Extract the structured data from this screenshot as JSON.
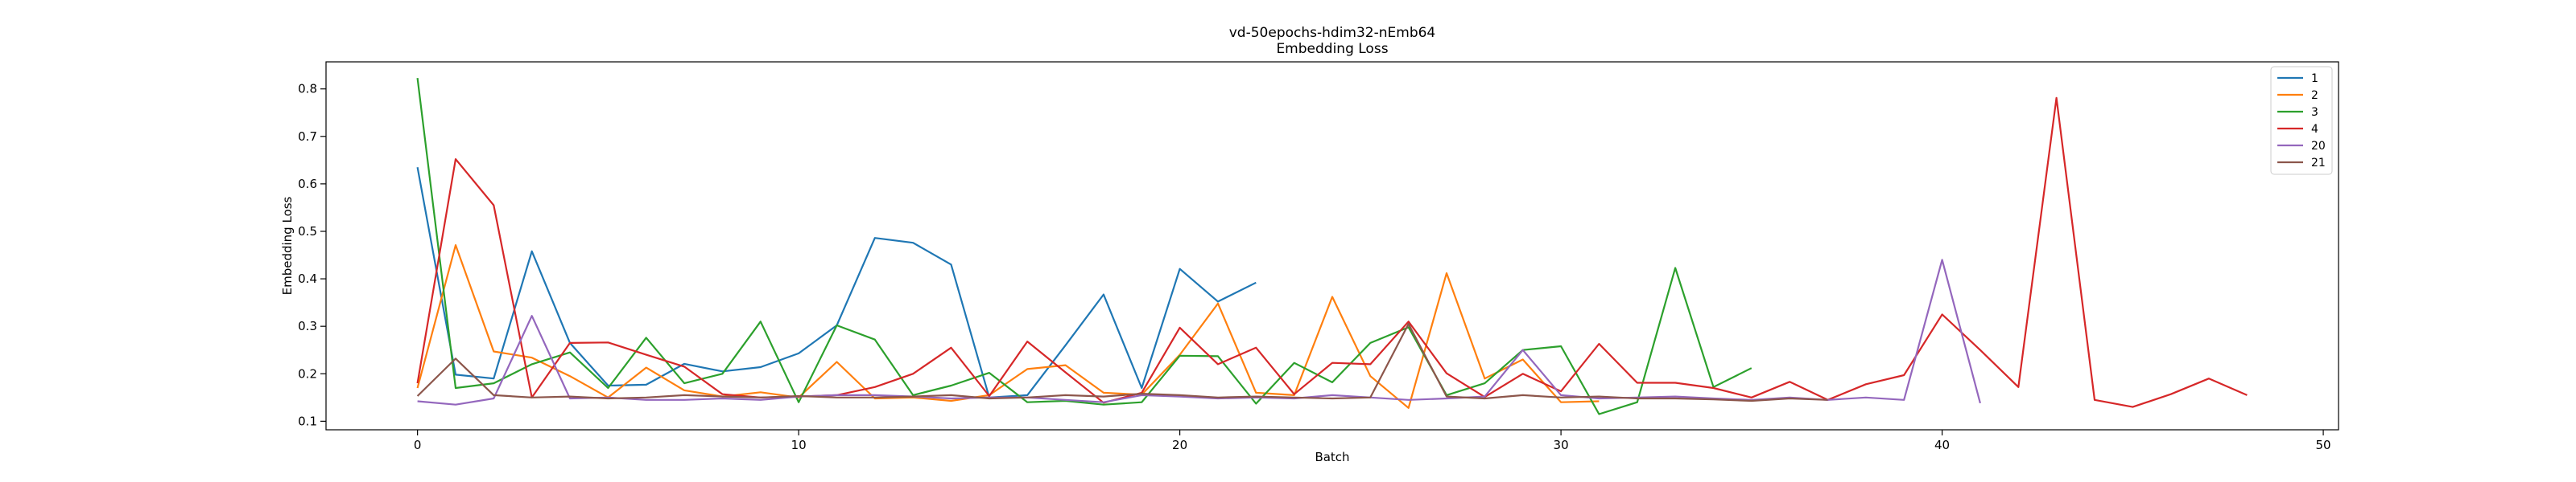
{
  "chart_data": {
    "type": "line",
    "title": "vd-50epochs-hdim32-nEmb64",
    "subtitle": "Embedding Loss",
    "xlabel": "Batch",
    "ylabel": "Embedding Loss",
    "xlim": [
      -2.4,
      50.4
    ],
    "ylim": [
      0.082,
      0.857
    ],
    "xticks": [
      0,
      10,
      20,
      30,
      40,
      50
    ],
    "yticks": [
      0.1,
      0.2,
      0.3,
      0.4,
      0.5,
      0.6,
      0.7,
      0.8
    ],
    "grid": false,
    "legend_position": "top-right",
    "series": [
      {
        "name": "1",
        "color": "#1f77b4",
        "values": [
          0.635,
          0.198,
          0.19,
          0.458,
          0.265,
          0.175,
          0.177,
          0.221,
          0.205,
          0.214,
          0.243,
          0.302,
          0.486,
          0.476,
          0.43,
          0.15,
          0.155,
          0.26,
          0.367,
          0.17,
          0.421,
          0.352,
          0.392
        ]
      },
      {
        "name": "2",
        "color": "#ff7f0e",
        "values": [
          0.17,
          0.471,
          0.247,
          0.234,
          0.195,
          0.15,
          0.213,
          0.165,
          0.152,
          0.161,
          0.15,
          0.225,
          0.148,
          0.15,
          0.143,
          0.155,
          0.21,
          0.218,
          0.16,
          0.156,
          0.24,
          0.348,
          0.16,
          0.155,
          0.362,
          0.195,
          0.128,
          0.412,
          0.19,
          0.23,
          0.14,
          0.142
        ]
      },
      {
        "name": "3",
        "color": "#2ca02c",
        "values": [
          0.823,
          0.17,
          0.18,
          0.22,
          0.245,
          0.17,
          0.276,
          0.18,
          0.2,
          0.31,
          0.14,
          0.302,
          0.272,
          0.155,
          0.175,
          0.202,
          0.14,
          0.143,
          0.135,
          0.14,
          0.238,
          0.237,
          0.137,
          0.223,
          0.182,
          0.265,
          0.298,
          0.155,
          0.18,
          0.25,
          0.258,
          0.115,
          0.14,
          0.423,
          0.172,
          0.212
        ]
      },
      {
        "name": "4",
        "color": "#d62728",
        "values": [
          0.18,
          0.652,
          0.555,
          0.15,
          0.265,
          0.266,
          0.24,
          0.215,
          0.157,
          0.15,
          0.152,
          0.155,
          0.172,
          0.2,
          0.255,
          0.153,
          0.268,
          0.203,
          0.139,
          0.16,
          0.297,
          0.22,
          0.255,
          0.157,
          0.223,
          0.22,
          0.31,
          0.201,
          0.151,
          0.2,
          0.163,
          0.263,
          0.181,
          0.181,
          0.17,
          0.15,
          0.183,
          0.145,
          0.178,
          0.197,
          0.325,
          0.25,
          0.172,
          0.781,
          0.145,
          0.13,
          0.157,
          0.19,
          0.155
        ]
      },
      {
        "name": "20",
        "color": "#9467bd",
        "values": [
          0.142,
          0.135,
          0.148,
          0.322,
          0.148,
          0.15,
          0.145,
          0.145,
          0.148,
          0.145,
          0.152,
          0.155,
          0.155,
          0.152,
          0.148,
          0.15,
          0.15,
          0.145,
          0.14,
          0.155,
          0.152,
          0.148,
          0.15,
          0.148,
          0.155,
          0.15,
          0.145,
          0.148,
          0.152,
          0.25,
          0.155,
          0.148,
          0.15,
          0.152,
          0.148,
          0.145,
          0.15,
          0.145,
          0.15,
          0.145,
          0.44,
          0.138
        ]
      },
      {
        "name": "21",
        "color": "#8c564b",
        "values": [
          0.153,
          0.232,
          0.155,
          0.15,
          0.152,
          0.148,
          0.15,
          0.155,
          0.152,
          0.15,
          0.153,
          0.15,
          0.15,
          0.152,
          0.155,
          0.148,
          0.15,
          0.155,
          0.152,
          0.158,
          0.155,
          0.15,
          0.152,
          0.15,
          0.148,
          0.15,
          0.305,
          0.152,
          0.148,
          0.155,
          0.15,
          0.152,
          0.148,
          0.148,
          0.146,
          0.143,
          0.148,
          0.145
        ]
      }
    ]
  }
}
